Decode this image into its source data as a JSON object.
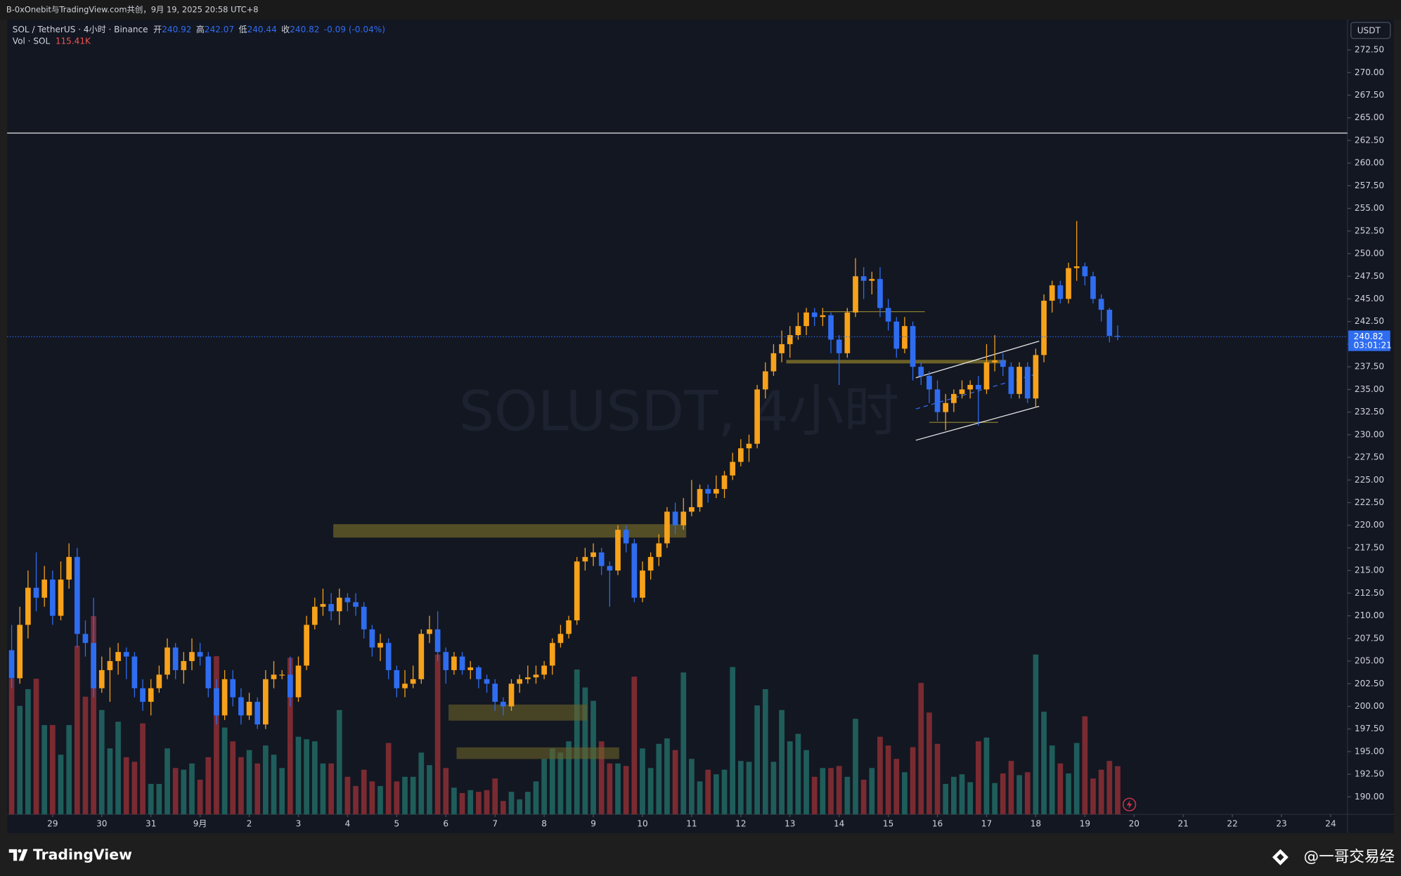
{
  "header": {
    "title": "B-0xOnebit与TradingView.com共创，9月 19, 2025 20:58 UTC+8"
  },
  "legend": {
    "symbol": "SOL / TetherUS · 4小时 · Binance",
    "open_label": "开",
    "high_label": "高",
    "low_label": "低",
    "close_label": "收",
    "change": "-0.09 (-0.04%)",
    "volume_title": "Vol · SOL"
  },
  "chart_data": {
    "type": "candlestick",
    "watermark": "SOLUSDT, 4小时",
    "currency": "USDT",
    "countdown": "03:01:21",
    "open": [
      206.2,
      203.1,
      209,
      213.1,
      212,
      214,
      210,
      214,
      216.5,
      208,
      207,
      202,
      204,
      205,
      206,
      205.5,
      202,
      200.5,
      202,
      203.5,
      206.5,
      204,
      205,
      206,
      205.5,
      202,
      199,
      203,
      201,
      199,
      200.5,
      198,
      203,
      203.5,
      203.5,
      201,
      204.5,
      209,
      211,
      211.3,
      210.5,
      212,
      211.5,
      211,
      208.5,
      206.5,
      207,
      204,
      202,
      202.5,
      203,
      208,
      208.5,
      206,
      204,
      205.5,
      204,
      204.3,
      203,
      202.5,
      200.5,
      200,
      202.5,
      203,
      203.2,
      203.5,
      204.5,
      207,
      208,
      209.5,
      216,
      216.5,
      217,
      215.5,
      215,
      219.5,
      218,
      212,
      215,
      216.5,
      218,
      221.5,
      220,
      221.5,
      222,
      224,
      223.5,
      224,
      225.5,
      227,
      228.5,
      229,
      235,
      237,
      239,
      240,
      241,
      242,
      243.5,
      243,
      243.2,
      240.5,
      239,
      243.5,
      247.5,
      247,
      247.2,
      244,
      242.5,
      239.5,
      242,
      237.5,
      236.5,
      235,
      232.5,
      233.5,
      234.5,
      235,
      235.5,
      235,
      238,
      238.2,
      237.5,
      234.5,
      237.5,
      234,
      238.8,
      244.8,
      246.5,
      245,
      248.4,
      248.6,
      247.5,
      245,
      243.8,
      240.92
    ],
    "close": [
      203.1,
      209,
      213.1,
      212,
      214,
      210,
      214,
      216.5,
      208,
      207,
      202,
      204,
      205,
      206,
      205.5,
      202,
      200.5,
      202,
      203.5,
      206.5,
      204,
      205,
      206,
      205.5,
      202,
      199,
      203,
      201,
      199,
      200.5,
      198,
      203,
      203.5,
      203.5,
      201,
      204.5,
      209,
      211,
      211.3,
      210.5,
      212,
      211.5,
      211,
      208.5,
      206.5,
      207,
      204,
      202,
      202.5,
      203,
      208,
      208.5,
      206,
      204,
      205.5,
      204,
      204.3,
      203,
      202.5,
      200.5,
      200,
      202.5,
      203,
      203.2,
      203.5,
      204.5,
      207,
      208,
      209.5,
      216,
      216.5,
      217,
      215.5,
      215,
      219.5,
      218,
      212,
      215,
      216.5,
      218,
      221.5,
      220,
      221.5,
      222,
      224,
      223.5,
      224,
      225.5,
      227,
      228.5,
      229,
      235,
      237,
      239,
      240,
      241,
      242,
      243.5,
      243,
      243.2,
      240.5,
      239,
      243.5,
      247.5,
      247,
      247.2,
      244,
      242.5,
      239.5,
      242,
      237.5,
      236.5,
      235,
      232.5,
      233.5,
      234.5,
      235,
      235.5,
      235,
      238,
      238.2,
      237.5,
      234.5,
      237.5,
      234,
      238.8,
      244.8,
      246.5,
      245,
      248.4,
      248.6,
      247.5,
      245,
      243.8,
      240.92,
      240.82
    ],
    "high": [
      209,
      211,
      215,
      217,
      215.5,
      215,
      216,
      218,
      217.5,
      209.5,
      212,
      205.5,
      206.5,
      207,
      206.5,
      206,
      203,
      203,
      204.5,
      207.5,
      207,
      206,
      207.5,
      207,
      206,
      203,
      204,
      204,
      202,
      201.5,
      201,
      204,
      205,
      204,
      205.5,
      205.5,
      210,
      212,
      213,
      212.5,
      213,
      212.5,
      212.5,
      211.5,
      209,
      208,
      207.5,
      204.5,
      204,
      204.5,
      208.5,
      210,
      210.5,
      206.5,
      206,
      206,
      205,
      204.5,
      203.5,
      203,
      201,
      203,
      203.5,
      204.5,
      204.5,
      205,
      207.5,
      209,
      210,
      216.5,
      217.5,
      218,
      217.5,
      216,
      220,
      220,
      218.5,
      216,
      217,
      219,
      222,
      222.5,
      223,
      225,
      224.5,
      224.5,
      225.5,
      226,
      228,
      229.5,
      230,
      235.5,
      238,
      240,
      241.5,
      242,
      243.5,
      244,
      244,
      244,
      243.5,
      241,
      244,
      249.5,
      248.5,
      248,
      248.5,
      245,
      243,
      243,
      242.5,
      238,
      237,
      236,
      234.5,
      235,
      236,
      236,
      236.5,
      240,
      241,
      239,
      238,
      238,
      238,
      239.5,
      245.5,
      247,
      247,
      249,
      253.6,
      249,
      248,
      245.5,
      244,
      242.07
    ],
    "low": [
      202,
      202.5,
      207.5,
      210.5,
      211,
      209,
      209.5,
      213,
      206.5,
      205.5,
      201,
      201.5,
      200.5,
      203.5,
      203,
      201,
      199.5,
      199,
      201.5,
      203,
      203,
      202.5,
      204,
      204.5,
      201,
      198,
      198.5,
      200,
      198,
      198.5,
      197.5,
      197.5,
      202,
      203,
      200,
      200.5,
      204,
      208.5,
      210,
      209.5,
      209,
      210.5,
      210,
      207.5,
      205.5,
      205,
      203,
      201,
      201,
      202,
      202.5,
      207,
      205,
      202.5,
      203.5,
      203.5,
      203,
      202,
      201.5,
      199.5,
      199,
      199.5,
      201.5,
      202.5,
      202.5,
      203,
      203.5,
      206.5,
      207.5,
      209,
      215,
      215.5,
      214.5,
      211,
      214.5,
      217,
      211.5,
      211.5,
      214,
      215.5,
      217.5,
      219,
      219.5,
      221,
      221.5,
      222.5,
      223,
      223,
      225,
      226.5,
      227,
      228.5,
      234,
      236.5,
      238,
      238.5,
      240.5,
      241,
      242,
      242,
      239,
      235.5,
      238.5,
      243,
      245,
      245.5,
      243,
      241.5,
      238.5,
      239,
      236,
      235.5,
      233.5,
      231.5,
      230.5,
      232.5,
      234,
      234,
      231,
      234.5,
      237,
      236.5,
      234,
      234,
      233.5,
      233,
      238,
      243.5,
      244.5,
      244.5,
      247,
      246.5,
      244.5,
      242.5,
      240.2,
      240.44
    ],
    "volume": [
      325,
      260,
      300,
      325,
      214,
      214,
      143,
      214,
      404,
      282,
      475,
      250,
      158,
      222,
      137,
      126,
      218,
      73,
      73,
      158,
      111,
      107,
      122,
      83,
      137,
      379,
      208,
      175,
      137,
      154,
      122,
      165,
      143,
      111,
      375,
      186,
      180,
      175,
      122,
      122,
      250,
      90,
      68,
      107,
      79,
      68,
      171,
      79,
      90,
      90,
      148,
      118,
      383,
      111,
      64,
      51,
      58,
      54,
      58,
      86,
      32,
      54,
      36,
      54,
      79,
      133,
      158,
      148,
      175,
      347,
      304,
      272,
      175,
      122,
      122,
      116,
      330,
      158,
      111,
      169,
      182,
      154,
      340,
      133,
      79,
      107,
      96,
      107,
      353,
      128,
      126,
      261,
      300,
      126,
      250,
      175,
      193,
      154,
      90,
      111,
      111,
      116,
      90,
      229,
      83,
      111,
      186,
      165,
      133,
      101,
      161,
      315,
      244,
      169,
      73,
      90,
      96,
      77,
      175,
      184,
      75,
      98,
      128,
      94,
      101,
      383,
      246,
      165,
      122,
      98,
      171,
      235,
      86,
      107,
      128,
      115.41
    ],
    "volume_value_label": "115.41K",
    "up_color": "#f7a21b",
    "down_color": "#2f6df0",
    "volume_up_color": "#1f5d5b",
    "volume_down_color": "#7a2b31",
    "xlim": [
      -0.55,
      163.04
    ],
    "xticks": [
      {
        "value": 5,
        "label": "29"
      },
      {
        "value": 11,
        "label": "30"
      },
      {
        "value": 17,
        "label": "31"
      },
      {
        "value": 23,
        "label": "9月"
      },
      {
        "value": 29,
        "label": "2"
      },
      {
        "value": 35,
        "label": "3"
      },
      {
        "value": 41,
        "label": "4"
      },
      {
        "value": 47,
        "label": "5"
      },
      {
        "value": 53,
        "label": "6"
      },
      {
        "value": 59,
        "label": "7"
      },
      {
        "value": 65,
        "label": "8"
      },
      {
        "value": 71,
        "label": "9"
      },
      {
        "value": 77,
        "label": "10"
      },
      {
        "value": 83,
        "label": "11"
      },
      {
        "value": 89,
        "label": "12"
      },
      {
        "value": 95,
        "label": "13"
      },
      {
        "value": 101,
        "label": "14"
      },
      {
        "value": 107,
        "label": "15"
      },
      {
        "value": 113,
        "label": "16"
      },
      {
        "value": 119,
        "label": "17"
      },
      {
        "value": 125,
        "label": "18"
      },
      {
        "value": 131,
        "label": "19"
      },
      {
        "value": 137,
        "label": "20"
      },
      {
        "value": 143,
        "label": "21"
      },
      {
        "value": 149,
        "label": "22"
      },
      {
        "value": 155,
        "label": "23"
      },
      {
        "value": 161,
        "label": "24"
      }
    ],
    "ylim": [
      188.07,
      275.84
    ],
    "yticks": [
      {
        "value": 190,
        "label": "190.00"
      },
      {
        "value": 192.5,
        "label": "192.50"
      },
      {
        "value": 195,
        "label": "195.00"
      },
      {
        "value": 197.5,
        "label": "197.50"
      },
      {
        "value": 200,
        "label": "200.00"
      },
      {
        "value": 202.5,
        "label": "202.50"
      },
      {
        "value": 205,
        "label": "205.00"
      },
      {
        "value": 207.5,
        "label": "207.50"
      },
      {
        "value": 210,
        "label": "210.00"
      },
      {
        "value": 212.5,
        "label": "212.50"
      },
      {
        "value": 215,
        "label": "215.00"
      },
      {
        "value": 217.5,
        "label": "217.50"
      },
      {
        "value": 220,
        "label": "220.00"
      },
      {
        "value": 222.5,
        "label": "222.50"
      },
      {
        "value": 225,
        "label": "225.00"
      },
      {
        "value": 227.5,
        "label": "227.50"
      },
      {
        "value": 230,
        "label": "230.00"
      },
      {
        "value": 232.5,
        "label": "232.50"
      },
      {
        "value": 235,
        "label": "235.00"
      },
      {
        "value": 237.5,
        "label": "237.50"
      },
      {
        "value": 240,
        "label": "240.00"
      },
      {
        "value": 242.5,
        "label": "242.50"
      },
      {
        "value": 245,
        "label": "245.00"
      },
      {
        "value": 247.5,
        "label": "247.50"
      },
      {
        "value": 250,
        "label": "250.00"
      },
      {
        "value": 252.5,
        "label": "252.50"
      },
      {
        "value": 255,
        "label": "255.00"
      },
      {
        "value": 257.5,
        "label": "257.50"
      },
      {
        "value": 260,
        "label": "260.00"
      },
      {
        "value": 262.5,
        "label": "262.50"
      },
      {
        "value": 265,
        "label": "265.00"
      },
      {
        "value": 267.5,
        "label": "267.50"
      },
      {
        "value": 270,
        "label": "270.00"
      },
      {
        "value": 272.5,
        "label": "272.50"
      }
    ],
    "grid": false
  },
  "footer": {
    "brand": "TradingView",
    "credit": "@一哥交易经"
  }
}
